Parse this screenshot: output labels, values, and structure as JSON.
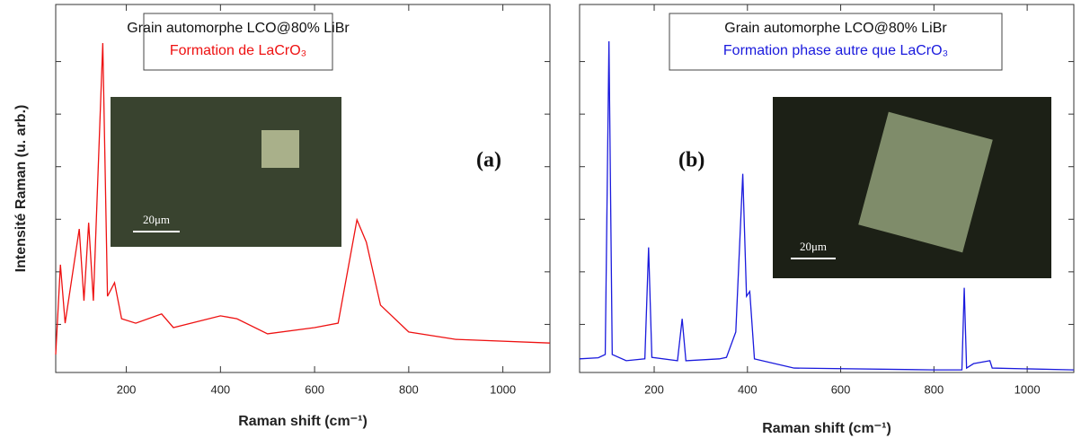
{
  "chart_data": [
    {
      "type": "line",
      "title": "Grain automorphe LCO@80% LiBr",
      "subtitle": "Formation de LaCrO₃",
      "annotation": "(a)",
      "scale_label": "20μm",
      "xlabel": "Raman shift (cm⁻¹)",
      "ylabel": "Intensité Raman (u. arb.)",
      "xlim": [
        50,
        1100
      ],
      "ylim": [
        0,
        100
      ],
      "xticks": [
        200,
        400,
        600,
        800,
        1000
      ],
      "color": "#ee1111",
      "x": [
        50,
        60,
        70,
        100,
        110,
        120,
        130,
        150,
        160,
        175,
        190,
        220,
        275,
        300,
        400,
        435,
        500,
        600,
        650,
        690,
        710,
        740,
        800,
        900,
        1100
      ],
      "values": [
        4.9,
        29.3,
        13.4,
        39,
        19.5,
        40.7,
        19.5,
        89.5,
        20.7,
        24.4,
        14.6,
        13.4,
        15.9,
        12.2,
        15.4,
        14.6,
        10.5,
        12.2,
        13.4,
        41.5,
        35.4,
        18.3,
        11,
        9,
        8
      ]
    },
    {
      "type": "line",
      "title": "Grain automorphe LCO@80% LiBr",
      "subtitle": "Formation phase autre que LaCrO₃",
      "annotation": "(b)",
      "scale_label": "20μm",
      "xlabel": "Raman shift (cm⁻¹)",
      "xlim": [
        40,
        1100
      ],
      "ylim": [
        0,
        100
      ],
      "xticks": [
        200,
        400,
        600,
        800,
        1000
      ],
      "color": "#1a1add",
      "x": [
        40,
        80,
        95,
        103,
        110,
        140,
        180,
        188,
        195,
        250,
        260,
        268,
        340,
        355,
        375,
        390,
        398,
        405,
        415,
        500,
        800,
        860,
        865,
        870,
        885,
        920,
        925,
        1100
      ],
      "values": [
        3.7,
        4,
        4.9,
        90,
        4.9,
        3.2,
        3.7,
        34,
        4.1,
        3.2,
        14.6,
        3.2,
        3.7,
        4.1,
        11,
        54,
        20.7,
        22,
        3.7,
        1.2,
        0.7,
        0.7,
        23,
        1.2,
        2.4,
        3.2,
        1.2,
        0.7
      ]
    }
  ]
}
